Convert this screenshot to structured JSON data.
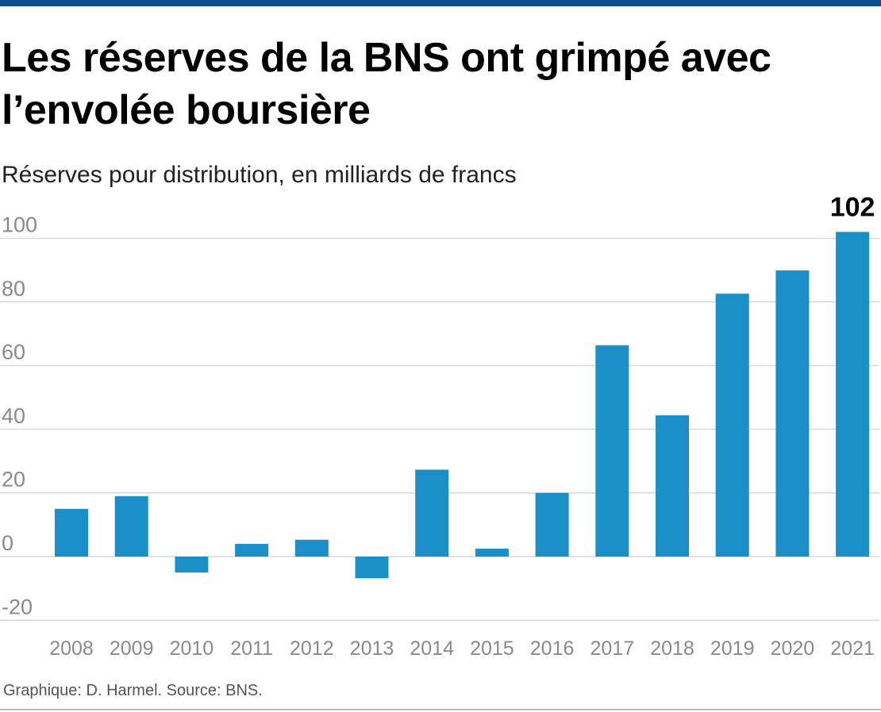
{
  "header": {
    "title": "Les réserves de la BNS ont grimpé avec l’envolée boursière",
    "subtitle": "Réserves pour distribution, en milliards de francs"
  },
  "footer": {
    "source": "Graphique: D. Harmel. Source: BNS."
  },
  "colors": {
    "bar": "#1b8fc8",
    "grid": "#d9d9d9",
    "tick_text": "#8a8a8a",
    "top_bar": "#0b4f91"
  },
  "chart_data": {
    "type": "bar",
    "title": "Les réserves de la BNS ont grimpé avec l’envolée boursière",
    "subtitle": "Réserves pour distribution, en milliards de francs",
    "categories": [
      "2008",
      "2009",
      "2010",
      "2011",
      "2012",
      "2013",
      "2014",
      "2015",
      "2016",
      "2017",
      "2018",
      "2019",
      "2020",
      "2021"
    ],
    "values": [
      15,
      19,
      -5,
      4,
      5.3,
      -6.8,
      27.3,
      2.5,
      20,
      66.4,
      44.4,
      82.6,
      89.9,
      102
    ],
    "value_labels": [
      {
        "category": "2021",
        "text": "102"
      }
    ],
    "yticks": [
      {
        "value": 100,
        "label": "100"
      },
      {
        "value": 80,
        "label": "80"
      },
      {
        "value": 60,
        "label": "60"
      },
      {
        "value": 40,
        "label": "40"
      },
      {
        "value": 20,
        "label": "20"
      },
      {
        "value": 0,
        "label": "0"
      },
      {
        "value": -20,
        "label": "-20"
      }
    ],
    "ylim": [
      -20,
      106
    ],
    "xlabel": "",
    "ylabel": "",
    "grid": true,
    "legend": "none"
  }
}
